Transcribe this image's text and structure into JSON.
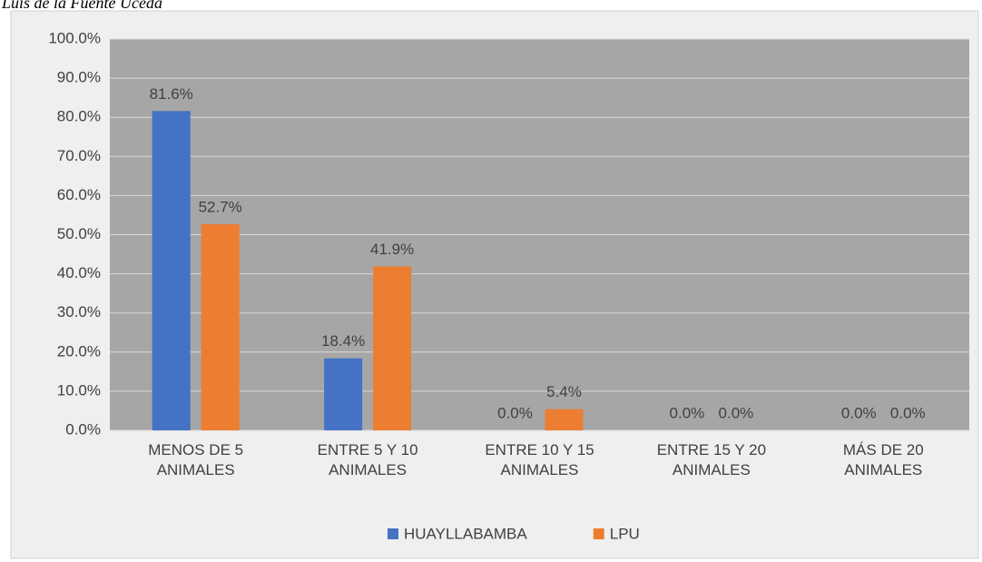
{
  "caption": "Luis de la Fuente Uceda",
  "chart_data": {
    "type": "bar",
    "categories": [
      "MENOS DE 5 ANIMALES",
      "ENTRE 5 Y 10 ANIMALES",
      "ENTRE 10 Y 15 ANIMALES",
      "ENTRE 15 Y 20 ANIMALES",
      "MÁS DE 20 ANIMALES"
    ],
    "series": [
      {
        "name": "HUAYLLABAMBA",
        "color": "#4472c4",
        "values": [
          81.6,
          18.4,
          0,
          0,
          0
        ],
        "value_labels": [
          "81.6%",
          "18.4%",
          "0.0%",
          "0.0%",
          "0.0%"
        ]
      },
      {
        "name": "LPU",
        "color": "#ed7d31",
        "values": [
          52.7,
          41.9,
          5.4,
          0,
          0
        ],
        "value_labels": [
          "52.7%",
          "41.9%",
          "5.4%",
          "0.0%",
          "0.0%"
        ]
      }
    ],
    "ylim": [
      0,
      100
    ],
    "yticks": [
      {
        "value": 0,
        "label": "0.0%"
      },
      {
        "value": 10,
        "label": "10.0%"
      },
      {
        "value": 20,
        "label": "20.0%"
      },
      {
        "value": 30,
        "label": "30.0%"
      },
      {
        "value": 40,
        "label": "40.0%"
      },
      {
        "value": 50,
        "label": "50.0%"
      },
      {
        "value": 60,
        "label": "60.0%"
      },
      {
        "value": 70,
        "label": "70.0%"
      },
      {
        "value": 80,
        "label": "80.0%"
      },
      {
        "value": 90,
        "label": "90.0%"
      },
      {
        "value": 100,
        "label": "100.0%"
      }
    ],
    "grid": true,
    "legend": "bottom"
  }
}
